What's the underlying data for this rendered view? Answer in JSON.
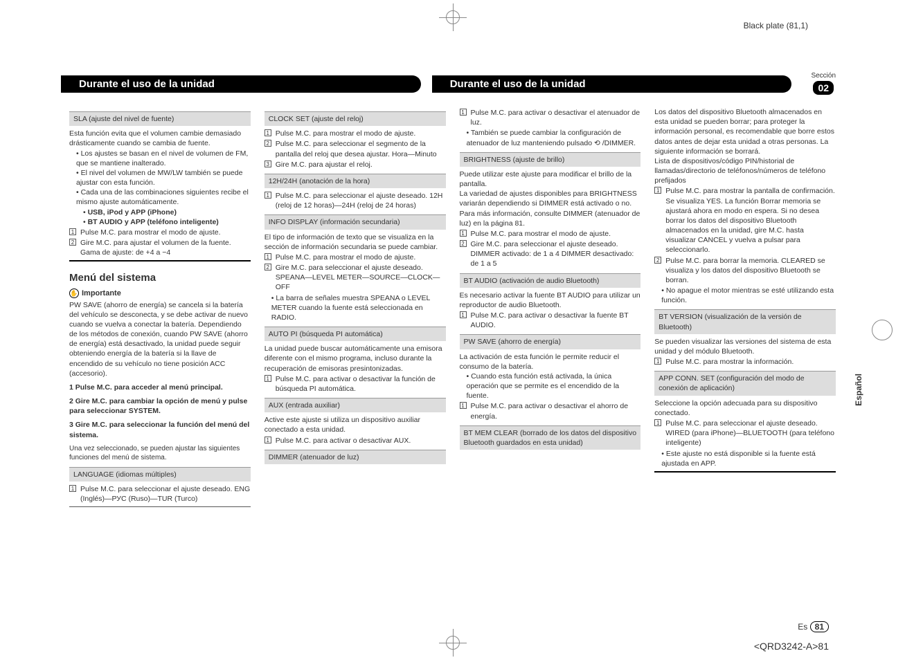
{
  "black_plate": "Black plate (81,1)",
  "side_label": "Español",
  "section_label": "Sección",
  "section_num": "02",
  "header_left": "Durante el uso de la unidad",
  "header_right": "Durante el uso de la unidad",
  "col1": {
    "sla_head": "SLA (ajuste del nivel de fuente)",
    "sla_p1": "Esta función evita que el volumen cambie demasiado drásticamente cuando se cambia de fuente.",
    "sla_b1": "Los ajustes se basan en el nivel de volumen de FM, que se mantiene inalterado.",
    "sla_b2": "El nivel del volumen de MW/LW también se puede ajustar con esta función.",
    "sla_b3": "Cada una de las combinaciones siguientes recibe el mismo ajuste automáticamente.",
    "sla_s1": "USB, iPod y APP (iPhone)",
    "sla_s2": "BT AUDIO y APP (teléfono inteligente)",
    "sla_n1": "Pulse M.C. para mostrar el modo de ajuste.",
    "sla_n2": "Gire M.C. para ajustar el volumen de la fuente. Gama de ajuste: de +4 a −4",
    "menu_title": "Menú del sistema",
    "important": "Importante",
    "pw_save_p": "PW SAVE (ahorro de energía) se cancela si la batería del vehículo se desconecta, y se debe activar de nuevo cuando se vuelva a conectar la batería. Dependiendo de los métodos de conexión, cuando PW SAVE (ahorro de energía) está desactivado, la unidad puede seguir obteniendo energía de la batería si la llave de encendido de su vehículo no tiene posición ACC (accesorio).",
    "step1": "1   Pulse M.C. para acceder al menú principal.",
    "step2": "2   Gire M.C. para cambiar la opción de menú y pulse para seleccionar SYSTEM.",
    "step3": "3   Gire M.C. para seleccionar la función del menú del sistema.",
    "step3_p": "Una vez seleccionado, se pueden ajustar las siguientes funciones del menú de sistema.",
    "lang_head": "LANGUAGE (idiomas múltiples)",
    "lang_n1": "Pulse M.C. para seleccionar el ajuste deseado. ENG (Inglés)—РУС (Ruso)—TUR (Turco)"
  },
  "col2": {
    "clock_head": "CLOCK SET (ajuste del reloj)",
    "clock_n1": "Pulse M.C. para mostrar el modo de ajuste.",
    "clock_n2": "Pulse M.C. para seleccionar el segmento de la pantalla del reloj que desea ajustar. Hora—Minuto",
    "clock_n3": "Gire M.C. para ajustar el reloj.",
    "h12_head": "12H/24H (anotación de la hora)",
    "h12_n1": "Pulse M.C. para seleccionar el ajuste deseado. 12H (reloj de 12 horas)—24H (reloj de 24 horas)",
    "info_head": "INFO DISPLAY (información secundaria)",
    "info_p": "El tipo de información de texto que se visualiza en la sección de información secundaria se puede cambiar.",
    "info_n1": "Pulse M.C. para mostrar el modo de ajuste.",
    "info_n2": "Gire M.C. para seleccionar el ajuste deseado. SPEANA—LEVEL METER—SOURCE—CLOCK—OFF",
    "info_b1": "La barra de señales muestra SPEANA o LEVEL METER cuando la fuente está seleccionada en RADIO.",
    "auto_head": "AUTO PI (búsqueda PI automática)",
    "auto_p": "La unidad puede buscar automáticamente una emisora diferente con el mismo programa, incluso durante la recuperación de emisoras presintonizadas.",
    "auto_n1": "Pulse M.C. para activar o desactivar la función de búsqueda PI automática.",
    "aux_head": "AUX (entrada auxiliar)",
    "aux_p": "Active este ajuste si utiliza un dispositivo auxiliar conectado a esta unidad.",
    "aux_n1": "Pulse M.C. para activar o desactivar AUX.",
    "dimmer_head": "DIMMER (atenuador de luz)"
  },
  "col3": {
    "dim_n1": "Pulse M.C. para activar o desactivar el atenuador de luz.",
    "dim_b1": "También se puede cambiar la configuración de atenuador de luz manteniendo pulsado ⟲ /DIMMER.",
    "bright_head": "BRIGHTNESS (ajuste de brillo)",
    "bright_p1": "Puede utilizar este ajuste para modificar el brillo de la pantalla.",
    "bright_p2": "La variedad de ajustes disponibles para BRIGHTNESS variarán dependiendo si DIMMER está activado o no. Para más información, consulte DIMMER (atenuador de luz) en la página 81.",
    "bright_n1": "Pulse M.C. para mostrar el modo de ajuste.",
    "bright_n2": "Gire M.C. para seleccionar el ajuste deseado. DIMMER activado: de 1 a 4   DIMMER desactivado: de 1 a 5",
    "btaudio_head": "BT AUDIO (activación de audio Bluetooth)",
    "btaudio_p": "Es necesario activar la fuente BT AUDIO para utilizar un reproductor de audio Bluetooth.",
    "btaudio_n1": "Pulse M.C. para activar o desactivar la fuente BT AUDIO.",
    "pwsave_head": "PW SAVE (ahorro de energía)",
    "pwsave_p": "La activación de esta función le permite reducir el consumo de la batería.",
    "pwsave_b1": "Cuando esta función está activada, la única operación que se permite es el encendido de la fuente.",
    "pwsave_n1": "Pulse M.C. para activar o desactivar el ahorro de energía.",
    "btmem_head": "BT MEM CLEAR (borrado de los datos del dispositivo Bluetooth guardados en esta unidad)"
  },
  "col4": {
    "btmem_p1": "Los datos del dispositivo Bluetooth almacenados en esta unidad se pueden borrar; para proteger la información personal, es recomendable que borre estos datos antes de dejar esta unidad a otras personas. La siguiente información se borrará.",
    "btmem_p2": "Lista de dispositivos/código PIN/historial de llamadas/directorio de teléfonos/números de teléfono prefijados",
    "btmem_n1": "Pulse M.C. para mostrar la pantalla de confirmación. Se visualiza YES. La función Borrar memoria se ajustará ahora en modo en espera. Si no desea borrar los datos del dispositivo Bluetooth almacenados en la unidad, gire M.C. hasta visualizar CANCEL y vuelva a pulsar para seleccionarlo.",
    "btmem_n2": "Pulse M.C. para borrar la memoria. CLEARED se visualiza y los datos del dispositivo Bluetooth se borran.",
    "btmem_b1": "No apague el motor mientras se esté utilizando esta función.",
    "btver_head": "BT VERSION (visualización de la versión de Bluetooth)",
    "btver_p": "Se pueden visualizar las versiones del sistema de esta unidad y del módulo Bluetooth.",
    "btver_n1": "Pulse M.C. para mostrar la información.",
    "app_head": "APP CONN. SET (configuración del modo de conexión de aplicación)",
    "app_p": "Seleccione la opción adecuada para su dispositivo conectado.",
    "app_n1": "Pulse M.C. para seleccionar el ajuste deseado. WIRED (para iPhone)—BLUETOOTH (para teléfono inteligente)",
    "app_b1": "Este ajuste no está disponible si la fuente está ajustada en APP."
  },
  "footer_lang": "Es",
  "footer_page": "81",
  "footer_code": "<QRD3242-A>81"
}
